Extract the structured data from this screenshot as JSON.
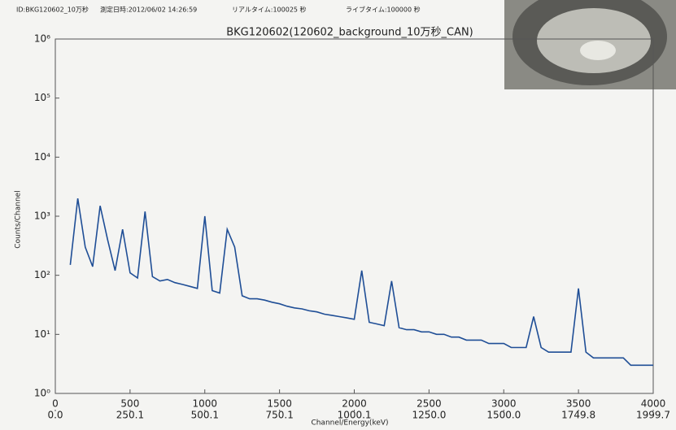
{
  "header": {
    "id": "ID:BKG120602_10万秒",
    "date": "測定日時:2012/06/02 14:26:59",
    "real_time": "リアルタイム:100025 秒",
    "live_time": "ライブタイム:100000 秒"
  },
  "chart_data": {
    "type": "line",
    "title": "BKG120602(120602_background_10万秒_CAN)",
    "x_label": "Channel/Energy(keV)",
    "y_label": "Counts/Channel",
    "log_y": true,
    "color": "#1f4e96",
    "x": [
      100,
      150,
      200,
      250,
      300,
      350,
      400,
      450,
      500,
      550,
      600,
      650,
      700,
      750,
      800,
      850,
      900,
      950,
      1000,
      1050,
      1100,
      1150,
      1200,
      1250,
      1300,
      1350,
      1400,
      1450,
      1500,
      1550,
      1600,
      1650,
      1700,
      1750,
      1800,
      1850,
      1900,
      1950,
      2000,
      2050,
      2100,
      2150,
      2200,
      2250,
      2300,
      2350,
      2400,
      2450,
      2500,
      2550,
      2600,
      2650,
      2700,
      2750,
      2800,
      2850,
      2900,
      2950,
      3000,
      3050,
      3100,
      3150,
      3200,
      3250,
      3300,
      3350,
      3400,
      3450,
      3500,
      3550,
      3600,
      3650,
      3700,
      3750,
      3800,
      3850,
      3900,
      3950,
      4000
    ],
    "values": [
      150,
      2000,
      300,
      140,
      1500,
      400,
      120,
      600,
      110,
      90,
      1200,
      95,
      80,
      85,
      75,
      70,
      65,
      60,
      1000,
      55,
      50,
      600,
      300,
      45,
      40,
      40,
      38,
      35,
      33,
      30,
      28,
      27,
      25,
      24,
      22,
      21,
      20,
      19,
      18,
      120,
      16,
      15,
      14,
      80,
      13,
      12,
      12,
      11,
      11,
      10,
      10,
      9,
      9,
      8,
      8,
      8,
      7,
      7,
      7,
      6,
      6,
      6,
      20,
      6,
      5,
      5,
      5,
      5,
      60,
      5,
      4,
      4,
      4,
      4,
      4,
      3,
      3,
      3,
      3
    ],
    "xlim": [
      0,
      4000
    ],
    "xticks": [
      0,
      500,
      1000,
      1500,
      2000,
      2500,
      3000,
      3500,
      4000
    ],
    "x2lim": [
      0,
      1999.7
    ],
    "x2ticks": [
      {
        "value": 0,
        "label": "0.0"
      },
      {
        "value": 250.1,
        "label": "250.1"
      },
      {
        "value": 500.1,
        "label": "500.1"
      },
      {
        "value": 750.1,
        "label": "750.1"
      },
      {
        "value": 1000.1,
        "label": "1000.1"
      },
      {
        "value": 1250,
        "label": "1250.0"
      },
      {
        "value": 1500,
        "label": "1500.0"
      },
      {
        "value": 1749.8,
        "label": "1749.8"
      },
      {
        "value": 1999.7,
        "label": "1999.7"
      }
    ],
    "ylim": [
      1,
      1000000
    ],
    "yticks": [
      {
        "value": 1,
        "label": "10⁰"
      },
      {
        "value": 10,
        "label": "10¹"
      },
      {
        "value": 100,
        "label": "10²"
      },
      {
        "value": 1000,
        "label": "10³"
      },
      {
        "value": 10000,
        "label": "10⁴"
      },
      {
        "value": 100000,
        "label": "10⁵"
      },
      {
        "value": 1000000,
        "label": "10⁶"
      }
    ]
  }
}
